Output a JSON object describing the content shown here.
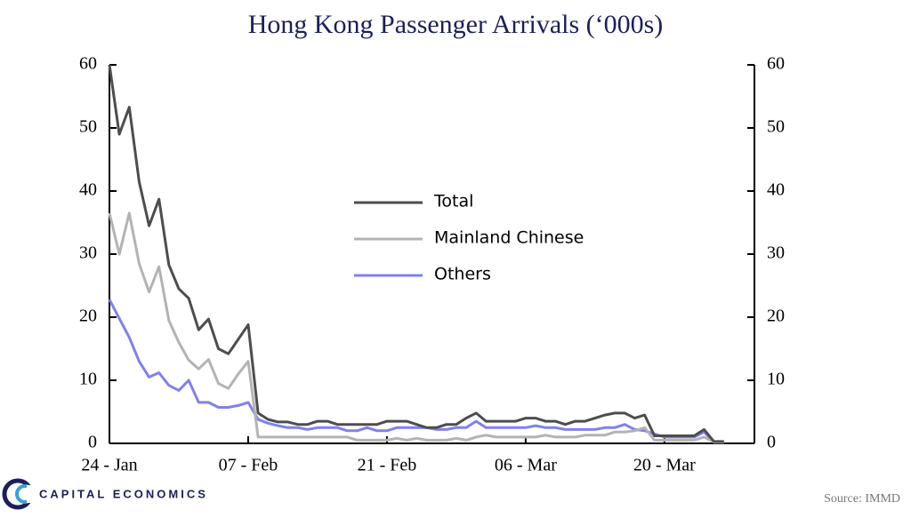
{
  "chart_data": {
    "type": "line",
    "title": "Hong Kong Passenger Arrivals (‘000s)",
    "categories": [
      "24 - Jan",
      null,
      null,
      null,
      null,
      null,
      null,
      null,
      null,
      null,
      null,
      null,
      null,
      null,
      "07 - Feb",
      null,
      null,
      null,
      null,
      null,
      null,
      null,
      null,
      null,
      null,
      null,
      null,
      null,
      "21 - Feb",
      null,
      null,
      null,
      null,
      null,
      null,
      null,
      null,
      null,
      null,
      null,
      null,
      null,
      "06 - Mar",
      null,
      null,
      null,
      null,
      null,
      null,
      null,
      null,
      null,
      null,
      null,
      null,
      null,
      "20 - Mar",
      null,
      null,
      null,
      null,
      null,
      null
    ],
    "series": [
      {
        "name": "Total",
        "color": "#4d4d4d",
        "values": [
          60,
          49,
          53.3,
          41.5,
          34.5,
          38.7,
          28.3,
          24.5,
          23,
          18,
          19.7,
          15,
          14.2,
          16.5,
          18.8,
          4.8,
          3.8,
          3.4,
          3.4,
          3,
          3,
          3.5,
          3.5,
          3,
          3,
          3,
          3,
          3,
          3.5,
          3.5,
          3.5,
          3,
          2.5,
          2.5,
          3,
          3,
          4,
          4.8,
          3.5,
          3.5,
          3.5,
          3.5,
          4,
          4,
          3.5,
          3.5,
          3,
          3.5,
          3.5,
          4,
          4.5,
          4.8,
          4.8,
          4,
          4.5,
          1.2,
          1.2,
          1.2,
          1.2,
          1.2,
          2.2,
          0.3,
          0.3
        ]
      },
      {
        "name": "Mainland Chinese",
        "color": "#b3b3b3",
        "values": [
          36.5,
          30,
          36.5,
          28.5,
          24,
          28,
          19.5,
          16,
          13.2,
          11.8,
          13.3,
          9.5,
          8.7,
          11,
          13,
          1,
          1,
          1,
          1,
          1,
          1,
          1,
          1,
          1,
          1,
          0.5,
          0.5,
          0.5,
          0.5,
          0.8,
          0.5,
          0.8,
          0.5,
          0.5,
          0.5,
          0.8,
          0.5,
          1,
          1.3,
          1,
          1,
          1,
          1,
          1,
          1.3,
          1,
          1,
          1,
          1.3,
          1.3,
          1.3,
          1.8,
          1.8,
          2,
          2.5,
          0.5,
          0.5,
          0.5,
          0.5,
          0.5,
          1,
          0.2,
          0.2
        ]
      },
      {
        "name": "Others",
        "color": "#8080f0",
        "values": [
          22.8,
          19.8,
          16.8,
          13,
          10.5,
          11.2,
          9.2,
          8.4,
          10,
          6.5,
          6.5,
          5.7,
          5.7,
          6,
          6.5,
          3.8,
          3.2,
          2.8,
          2.5,
          2.5,
          2.2,
          2.5,
          2.5,
          2.5,
          2,
          2,
          2.5,
          2,
          2,
          2.5,
          2.5,
          2.5,
          2.5,
          2.2,
          2.2,
          2.5,
          2.5,
          3.5,
          2.5,
          2.5,
          2.5,
          2.5,
          2.5,
          2.8,
          2.5,
          2.5,
          2.2,
          2.2,
          2.2,
          2.2,
          2.5,
          2.5,
          3,
          2.2,
          2,
          1.5,
          1,
          1,
          1,
          1,
          1.8,
          0.2,
          0.2
        ]
      }
    ],
    "ylim": [
      0,
      60
    ],
    "yticks": [
      0,
      10,
      20,
      30,
      40,
      50,
      60
    ],
    "y2lim": [
      0,
      60
    ],
    "y2ticks": [
      0,
      10,
      20,
      30,
      40,
      50,
      60
    ],
    "logo": "CAPITAL ECONOMICS",
    "source": "Source: IMMD"
  }
}
